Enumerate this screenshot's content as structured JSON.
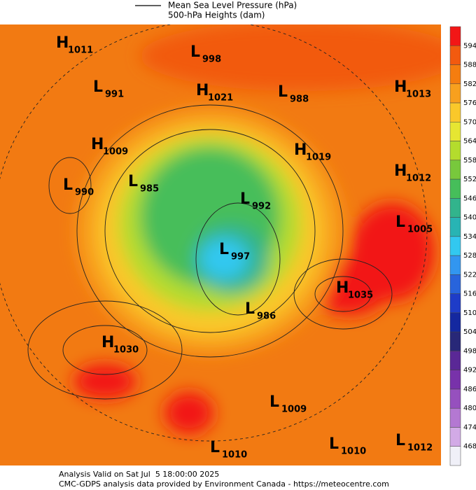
{
  "header": {
    "legend_line_label": "Mean Sea Level Pressure (hPa)",
    "shading_label": "500-hPa Heights (dam)"
  },
  "centers": [
    {
      "letter": "H",
      "value": 1011
    },
    {
      "letter": "L",
      "value": 998
    },
    {
      "letter": "L",
      "value": 991
    },
    {
      "letter": "H",
      "value": 1021
    },
    {
      "letter": "L",
      "value": 988
    },
    {
      "letter": "H",
      "value": 1013
    },
    {
      "letter": "H",
      "value": 1009
    },
    {
      "letter": "H",
      "value": 1019
    },
    {
      "letter": "L",
      "value": 990
    },
    {
      "letter": "L",
      "value": 985
    },
    {
      "letter": "H",
      "value": 1012
    },
    {
      "letter": "L",
      "value": 992
    },
    {
      "letter": "L",
      "value": 1005
    },
    {
      "letter": "L",
      "value": 997
    },
    {
      "letter": "H",
      "value": 1035
    },
    {
      "letter": "L",
      "value": 986
    },
    {
      "letter": "H",
      "value": 1030
    },
    {
      "letter": "L",
      "value": 1009
    },
    {
      "letter": "L",
      "value": 1010
    },
    {
      "letter": "L",
      "value": 1010
    },
    {
      "letter": "L",
      "value": 1012
    }
  ],
  "colorbar": {
    "ticks": [
      594,
      588,
      582,
      576,
      570,
      564,
      558,
      552,
      546,
      540,
      534,
      528,
      522,
      516,
      510,
      504,
      498,
      492,
      486,
      480,
      474,
      468
    ],
    "colors": [
      "#f21616",
      "#f25a0f",
      "#f57d0f",
      "#f8a01e",
      "#fac82a",
      "#e6e632",
      "#b4dc2d",
      "#78c83c",
      "#46be5a",
      "#32b48c",
      "#28b4b4",
      "#32c8f0",
      "#3296f0",
      "#2864dc",
      "#1e3cc8",
      "#1428a0",
      "#282878",
      "#5a2896",
      "#7832aa",
      "#9650be",
      "#b478d2",
      "#d2aae6",
      "#f0f0f8"
    ]
  },
  "footer": {
    "line1": "Analysis Valid on Sat Jul  5 18:00:00 2025",
    "line2": "CMC-GDPS analysis data provided by Environment Canada - https://meteocentre.com"
  }
}
